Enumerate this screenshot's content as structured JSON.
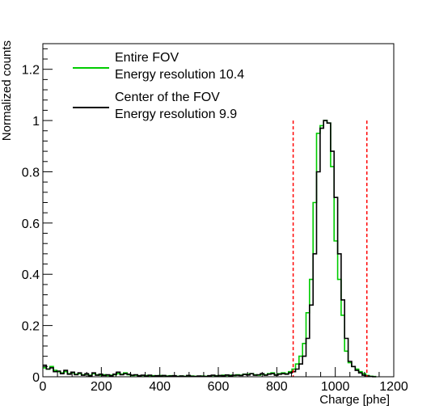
{
  "chart_data": {
    "type": "line",
    "xlabel": "Charge [phe]",
    "ylabel": "Normalized counts",
    "xlim": [
      0,
      1200
    ],
    "ylim": [
      0,
      1.3
    ],
    "x_ticks": [
      0,
      200,
      400,
      600,
      800,
      1000,
      1200
    ],
    "y_ticks": [
      0,
      0.2,
      0.4,
      0.6,
      0.8,
      1,
      1.2
    ],
    "y_tick_labels": [
      "0",
      "0.2",
      "0.4",
      "0.6",
      "0.8",
      "1",
      "1.2"
    ],
    "grid": false,
    "legend_position": "top-left",
    "bin_width": 12,
    "series": [
      {
        "name": "Entire FOV",
        "subtitle": "Energy resolution 10.4",
        "color": "#00cc00",
        "bin_start": [
          0,
          12,
          24,
          36,
          48,
          60,
          72,
          84,
          96,
          108,
          120,
          132,
          144,
          156,
          168,
          180,
          192,
          204,
          216,
          228,
          240,
          252,
          264,
          276,
          288,
          300,
          312,
          324,
          336,
          348,
          360,
          372,
          384,
          396,
          408,
          420,
          432,
          444,
          456,
          468,
          480,
          492,
          504,
          516,
          528,
          540,
          552,
          564,
          576,
          588,
          600,
          612,
          624,
          636,
          648,
          660,
          672,
          684,
          696,
          708,
          720,
          732,
          744,
          756,
          768,
          780,
          792,
          804,
          816,
          828,
          840,
          852,
          864,
          876,
          888,
          900,
          912,
          924,
          936,
          948,
          960,
          972,
          984,
          996,
          1008,
          1020,
          1032,
          1044,
          1056,
          1068,
          1080,
          1092,
          1104,
          1116,
          1128
        ],
        "values": [
          0.035,
          0.03,
          0.04,
          0.025,
          0.02,
          0.015,
          0.02,
          0.012,
          0.015,
          0.01,
          0.012,
          0.008,
          0.01,
          0.006,
          0.012,
          0.008,
          0.006,
          0.008,
          0.005,
          0.006,
          0.008,
          0.012,
          0.01,
          0.015,
          0.008,
          0.005,
          0.006,
          0.004,
          0.005,
          0.005,
          0.004,
          0.004,
          0.003,
          0.005,
          0.004,
          0.003,
          0.004,
          0.003,
          0.002,
          0.003,
          0.002,
          0.004,
          0.003,
          0.002,
          0.002,
          0.003,
          0.002,
          0.003,
          0.005,
          0.004,
          0.004,
          0.006,
          0.005,
          0.006,
          0.005,
          0.008,
          0.006,
          0.01,
          0.01,
          0.012,
          0.008,
          0.006,
          0.01,
          0.008,
          0.012,
          0.015,
          0.008,
          0.012,
          0.015,
          0.012,
          0.02,
          0.03,
          0.05,
          0.08,
          0.13,
          0.25,
          0.38,
          0.68,
          0.95,
          0.98,
          1.0,
          0.99,
          0.82,
          0.53,
          0.38,
          0.24,
          0.1,
          0.055,
          0.04,
          0.03,
          0.02,
          0.012,
          0.005,
          0.002,
          0.001
        ]
      },
      {
        "name": "Center of the FOV",
        "subtitle": "Energy resolution 9.9",
        "color": "#000000",
        "bin_start": [
          0,
          12,
          24,
          36,
          48,
          60,
          72,
          84,
          96,
          108,
          120,
          132,
          144,
          156,
          168,
          180,
          192,
          204,
          216,
          228,
          240,
          252,
          264,
          276,
          288,
          300,
          312,
          324,
          336,
          348,
          360,
          372,
          384,
          396,
          408,
          420,
          432,
          444,
          456,
          468,
          480,
          492,
          504,
          516,
          528,
          540,
          552,
          564,
          576,
          588,
          600,
          612,
          624,
          636,
          648,
          660,
          672,
          684,
          696,
          708,
          720,
          732,
          744,
          756,
          768,
          780,
          792,
          804,
          816,
          828,
          840,
          852,
          864,
          876,
          888,
          900,
          912,
          924,
          936,
          948,
          960,
          972,
          984,
          996,
          1008,
          1020,
          1032,
          1044,
          1056,
          1068,
          1080,
          1092,
          1104,
          1116,
          1128
        ],
        "values": [
          0.045,
          0.03,
          0.035,
          0.02,
          0.022,
          0.012,
          0.025,
          0.01,
          0.018,
          0.008,
          0.015,
          0.006,
          0.012,
          0.004,
          0.015,
          0.006,
          0.01,
          0.005,
          0.008,
          0.004,
          0.01,
          0.018,
          0.008,
          0.012,
          0.01,
          0.006,
          0.008,
          0.004,
          0.006,
          0.003,
          0.006,
          0.002,
          0.004,
          0.003,
          0.005,
          0.002,
          0.003,
          0.004,
          0.001,
          0.003,
          0.001,
          0.005,
          0.002,
          0.001,
          0.003,
          0.002,
          0.001,
          0.004,
          0.006,
          0.003,
          0.005,
          0.004,
          0.007,
          0.004,
          0.006,
          0.006,
          0.005,
          0.009,
          0.007,
          0.012,
          0.006,
          0.008,
          0.012,
          0.006,
          0.01,
          0.012,
          0.006,
          0.01,
          0.012,
          0.01,
          0.015,
          0.02,
          0.03,
          0.05,
          0.08,
          0.15,
          0.28,
          0.48,
          0.8,
          0.97,
          1.0,
          0.99,
          0.88,
          0.7,
          0.48,
          0.3,
          0.15,
          0.06,
          0.04,
          0.025,
          0.015,
          0.006,
          0.003,
          0.001,
          0.0
        ]
      }
    ],
    "vertical_markers": [
      {
        "x": 856,
        "color": "#ff0000",
        "style": "dashed"
      },
      {
        "x": 1108,
        "color": "#ff0000",
        "style": "dashed"
      }
    ]
  }
}
